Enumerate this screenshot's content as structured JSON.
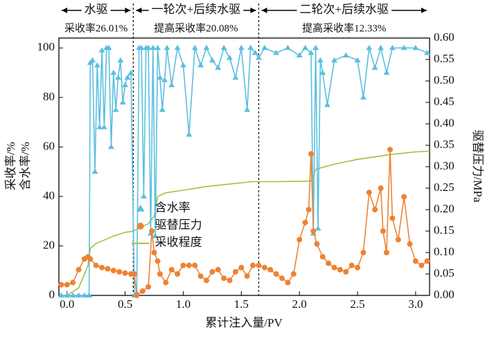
{
  "chart_data": {
    "type": "line",
    "x_label": "累计注入量/PV",
    "y_label": [
      "采收率/%",
      "含水率/%"
    ],
    "y2_label": "驱替压力/MPa",
    "xlim": [
      -0.07,
      3.12
    ],
    "ylim": [
      0,
      104
    ],
    "y2lim": [
      0,
      0.6
    ],
    "xticks": [
      {
        "value": 0,
        "label": "0.0"
      },
      0.5,
      {
        "value": 1,
        "label": "1.0"
      },
      1.5,
      {
        "value": 2,
        "label": "2.0"
      },
      2.5,
      {
        "value": 3,
        "label": "3.0"
      }
    ],
    "yticks": [
      0,
      20,
      40,
      60,
      80,
      100
    ],
    "y2ticks": [
      {
        "value": 0,
        "label": "0.00"
      },
      0.05,
      {
        "value": 0.1,
        "label": "0.10"
      },
      0.15,
      {
        "value": 0.2,
        "label": "0.20"
      },
      0.25,
      {
        "value": 0.3,
        "label": "0.30"
      },
      0.35,
      {
        "value": 0.4,
        "label": "0.40"
      },
      0.45,
      {
        "value": 0.5,
        "label": "0.50"
      },
      0.55,
      {
        "value": 0.6,
        "label": "0.60"
      }
    ],
    "dividers": [
      0.57,
      1.65
    ],
    "regions": [
      {
        "label": "水驱",
        "sublabel": "采收率26.01%"
      },
      {
        "label": "一轮次+后续水驱",
        "sublabel": "提高采收率20.08%"
      },
      {
        "label": "二轮次+后续水驱",
        "sublabel": "提高采收率12.33%"
      }
    ],
    "legend": "center-left",
    "series": [
      {
        "name": "含水率",
        "color": "#5bbfe0",
        "marker": "triangle",
        "axis": "y",
        "x": [
          -0.05,
          0,
          0.05,
          0.1,
          0.15,
          0.19,
          0.2,
          0.22,
          0.24,
          0.26,
          0.28,
          0.3,
          0.32,
          0.34,
          0.36,
          0.38,
          0.4,
          0.42,
          0.44,
          0.46,
          0.48,
          0.5,
          0.52,
          0.55,
          0.58,
          0.6,
          0.62,
          0.64,
          0.66,
          0.68,
          0.7,
          0.72,
          0.74,
          0.76,
          0.78,
          0.8,
          0.82,
          0.84,
          0.86,
          0.9,
          0.95,
          1,
          1.05,
          1.1,
          1.15,
          1.2,
          1.25,
          1.3,
          1.35,
          1.4,
          1.45,
          1.5,
          1.55,
          1.58,
          1.62,
          1.65,
          1.7,
          1.8,
          1.9,
          2,
          2.05,
          2.1,
          2.12,
          2.14,
          2.16,
          2.18,
          2.2,
          2.24,
          2.3,
          2.4,
          2.5,
          2.55,
          2.6,
          2.65,
          2.7,
          2.75,
          2.8,
          2.9,
          3,
          3.1
        ],
        "values": [
          0,
          0,
          0,
          0,
          0,
          0,
          94,
          95,
          50,
          93,
          68,
          99,
          68,
          100,
          100,
          60,
          90,
          75,
          88,
          95,
          78,
          85,
          88,
          90,
          0,
          1,
          100,
          100,
          40,
          100,
          100,
          25,
          100,
          24,
          100,
          88,
          75,
          87,
          100,
          85,
          100,
          93,
          65,
          100,
          93,
          100,
          95,
          92,
          100,
          96,
          88,
          100,
          75,
          100,
          98,
          96,
          100,
          98,
          100,
          97,
          100,
          98,
          25,
          100,
          27,
          95,
          90,
          77,
          95,
          97,
          95,
          80,
          100,
          92,
          100,
          90,
          100,
          100,
          100,
          98
        ]
      },
      {
        "name": "驱替压力",
        "color": "#ee8233",
        "marker": "circle",
        "axis": "y2",
        "x": [
          -0.05,
          0,
          0.05,
          0.1,
          0.15,
          0.18,
          0.2,
          0.25,
          0.3,
          0.35,
          0.4,
          0.45,
          0.5,
          0.55,
          0.58,
          0.6,
          0.65,
          0.7,
          0.73,
          0.75,
          0.78,
          0.8,
          0.85,
          0.9,
          0.95,
          1,
          1.05,
          1.1,
          1.15,
          1.2,
          1.25,
          1.3,
          1.35,
          1.4,
          1.45,
          1.5,
          1.55,
          1.6,
          1.65,
          1.7,
          1.75,
          1.8,
          1.85,
          1.9,
          1.95,
          2,
          2.05,
          2.08,
          2.1,
          2.12,
          2.15,
          2.2,
          2.25,
          2.3,
          2.35,
          2.4,
          2.45,
          2.5,
          2.55,
          2.6,
          2.65,
          2.7,
          2.72,
          2.75,
          2.78,
          2.8,
          2.85,
          2.9,
          2.95,
          3,
          3.05,
          3.1
        ],
        "values": [
          0.025,
          0.025,
          0.03,
          0.06,
          0.085,
          0.09,
          0.085,
          0.07,
          0.065,
          0.062,
          0.058,
          0.055,
          0.052,
          0.05,
          0.05,
          0,
          0.01,
          0.02,
          0.15,
          0.1,
          0.08,
          0.05,
          0.03,
          0.06,
          0.05,
          0.07,
          0.07,
          0.07,
          0.045,
          0.035,
          0.055,
          0.06,
          0.04,
          0.035,
          0.055,
          0.065,
          0.045,
          0.07,
          0.07,
          0.065,
          0.06,
          0.05,
          0.04,
          0.03,
          0.05,
          0.13,
          0.17,
          0.2,
          0.33,
          0.15,
          0.12,
          0.09,
          0.075,
          0.065,
          0.06,
          0.055,
          0.07,
          0.065,
          0.1,
          0.24,
          0.2,
          0.25,
          0.15,
          0.1,
          0.34,
          0.18,
          0.13,
          0.23,
          0.12,
          0.08,
          0.07,
          0.08
        ]
      },
      {
        "name": "采收程度",
        "color": "#9dc13a",
        "marker": "none",
        "axis": "y",
        "x": [
          0,
          0.1,
          0.18,
          0.2,
          0.25,
          0.3,
          0.4,
          0.5,
          0.57,
          0.7,
          0.75,
          0.78,
          0.85,
          1,
          1.2,
          1.4,
          1.6,
          1.8,
          2,
          2.1,
          2.12,
          2.14,
          2.3,
          2.5,
          2.8,
          3,
          3.12
        ],
        "values": [
          0,
          3,
          12,
          19,
          21,
          22,
          24,
          25.5,
          26,
          29,
          32,
          40,
          41.5,
          42.5,
          44,
          45,
          46,
          46,
          46.1,
          46.2,
          48,
          51,
          53,
          55,
          57,
          58,
          58.3
        ]
      }
    ]
  }
}
